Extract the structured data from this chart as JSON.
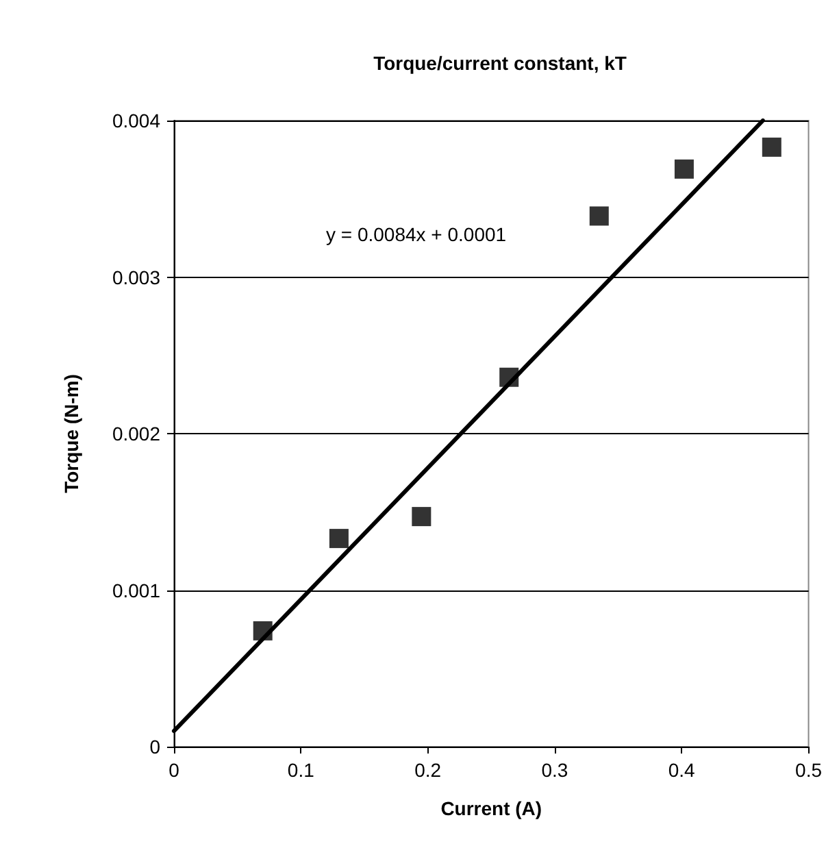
{
  "chart_data": {
    "type": "scatter",
    "title": "Torque/current constant, kT",
    "xlabel": "Current (A)",
    "ylabel": "Torque (N-m)",
    "xlim": [
      0,
      0.5
    ],
    "xticks": [
      0,
      0.1,
      0.2,
      0.3,
      0.4,
      0.5
    ],
    "ylim": [
      0,
      0.004
    ],
    "yticks": [
      0,
      0.001,
      0.002,
      0.003,
      0.004
    ],
    "grid": "y",
    "marker": "square",
    "series": [
      {
        "color": "#000000",
        "x": [
          0.07,
          0.13,
          0.195,
          0.264,
          0.335,
          0.402,
          0.471
        ],
        "values": [
          0.00074,
          0.00133,
          0.00147,
          0.00236,
          0.00339,
          0.00369,
          0.00383
        ]
      },
      {
        "type": "line",
        "color": "#000000",
        "marker": "none",
        "x": [
          0,
          0.464
        ],
        "values": [
          0.0001,
          0.004
        ]
      }
    ],
    "annotations": [
      "y = 0.0084x + 0.0001"
    ]
  }
}
